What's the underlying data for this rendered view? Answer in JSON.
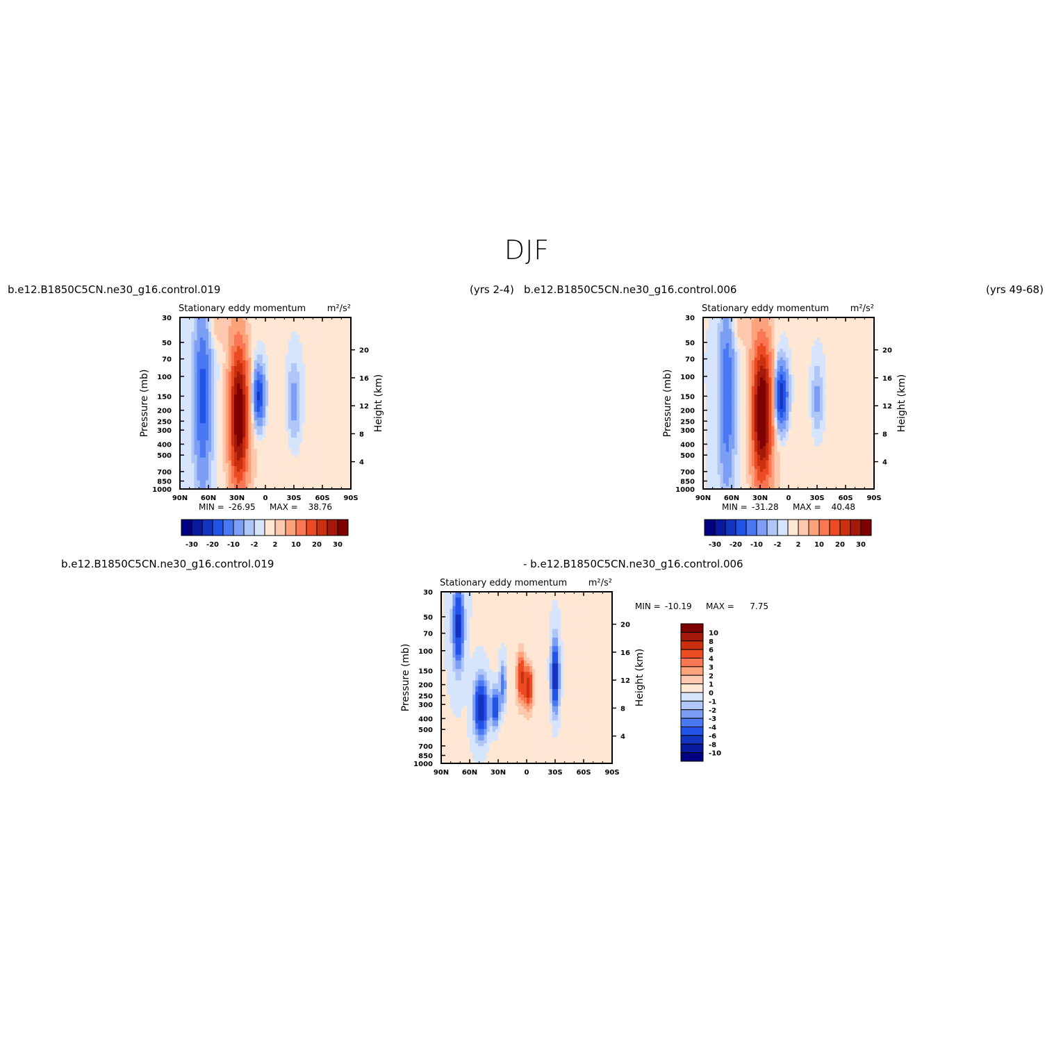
{
  "figure": {
    "title": "DJF"
  },
  "headers": {
    "top_left_case": "b.e12.B1850C5CN.ne30_g16.control.019",
    "top_left_years": "(yrs 2-4)",
    "top_right_case": "b.e12.B1850C5CN.ne30_g16.control.006",
    "top_right_years": "(yrs 49-68)",
    "bottom_left_case": "b.e12.B1850C5CN.ne30_g16.control.019",
    "bottom_diff_case": "- b.e12.B1850C5CN.ne30_g16.control.006"
  },
  "colors": {
    "fill": [
      "#000080",
      "#0a1a9c",
      "#1433c0",
      "#2353e6",
      "#4a78f2",
      "#7d9ef5",
      "#afc6f7",
      "#d6e5fc",
      "#ffe7d4",
      "#fdc9ae",
      "#fca37c",
      "#f97752",
      "#ec4a22",
      "#c9300f",
      "#a41909",
      "#7f0000"
    ]
  },
  "chart_data": [
    {
      "id": "control-019",
      "type": "heatmap",
      "title": "Stationary eddy momentum",
      "units": "m²/s²",
      "ylabel": "Pressure (mb)",
      "ylabel_right": "Height (km)",
      "x_ticks": [
        "90N",
        "60N",
        "30N",
        "0",
        "30S",
        "60S",
        "90S"
      ],
      "xlim": [
        90,
        -90
      ],
      "y_ticks": [
        30,
        50,
        70,
        100,
        150,
        200,
        250,
        300,
        400,
        500,
        700,
        850,
        1000
      ],
      "ylim": [
        1000,
        30
      ],
      "y_scale": "log",
      "height_ticks": [
        4,
        8,
        12,
        16,
        20
      ],
      "min_label": "MIN =",
      "min_value": "-26.95",
      "max_label": "MAX =",
      "max_value": "38.76",
      "colorbar": {
        "orientation": "horizontal",
        "labels": [
          "-30",
          "-20",
          "-10",
          "-2",
          "2",
          "10",
          "20",
          "30"
        ],
        "levels": [
          -30,
          -25,
          -20,
          -15,
          -10,
          -5,
          -2,
          0,
          2,
          5,
          10,
          15,
          20,
          25,
          30
        ]
      },
      "features": [
        {
          "lat": 66,
          "p": 150,
          "value": -17,
          "lat_width": 6,
          "decades": 0.55
        },
        {
          "lat": 28,
          "p": 220,
          "value": 36,
          "lat_width": 7,
          "decades": 0.45
        },
        {
          "lat": 7,
          "p": 150,
          "value": -22,
          "lat_width": 4.5,
          "decades": 0.18
        },
        {
          "lat": -30,
          "p": 170,
          "value": -8,
          "lat_width": 4.5,
          "decades": 0.22
        },
        {
          "lat": 50,
          "p": 35,
          "value": 4,
          "lat_width": 10,
          "decades": 0.12
        },
        {
          "lat": 0,
          "p": 500,
          "value": 1.5,
          "lat_width": 25,
          "decades": 0.6
        }
      ]
    },
    {
      "id": "control-006",
      "type": "heatmap",
      "title": "Stationary eddy momentum",
      "units": "m²/s²",
      "ylabel": "Pressure (mb)",
      "ylabel_right": "Height (km)",
      "x_ticks": [
        "90N",
        "60N",
        "30N",
        "0",
        "30S",
        "60S",
        "90S"
      ],
      "xlim": [
        90,
        -90
      ],
      "y_ticks": [
        30,
        50,
        70,
        100,
        150,
        200,
        250,
        300,
        400,
        500,
        700,
        850,
        1000
      ],
      "ylim": [
        1000,
        30
      ],
      "y_scale": "log",
      "height_ticks": [
        4,
        8,
        12,
        16,
        20
      ],
      "min_label": "MIN =",
      "min_value": "-31.28",
      "max_label": "MAX =",
      "max_value": "40.48",
      "colorbar": {
        "orientation": "horizontal",
        "labels": [
          "-30",
          "-20",
          "-10",
          "-2",
          "2",
          "10",
          "20",
          "30"
        ],
        "levels": [
          -30,
          -25,
          -20,
          -15,
          -10,
          -5,
          -2,
          0,
          2,
          5,
          10,
          15,
          20,
          25,
          30
        ]
      },
      "features": [
        {
          "lat": 65,
          "p": 150,
          "value": -15,
          "lat_width": 5.5,
          "decades": 0.55
        },
        {
          "lat": 28,
          "p": 210,
          "value": 38,
          "lat_width": 7.5,
          "decades": 0.45
        },
        {
          "lat": 8,
          "p": 150,
          "value": -26,
          "lat_width": 5,
          "decades": 0.2
        },
        {
          "lat": -30,
          "p": 160,
          "value": -7,
          "lat_width": 4,
          "decades": 0.2
        },
        {
          "lat": 50,
          "p": 35,
          "value": 4,
          "lat_width": 10,
          "decades": 0.12
        },
        {
          "lat": 0,
          "p": 500,
          "value": 1.5,
          "lat_width": 25,
          "decades": 0.6
        }
      ]
    },
    {
      "id": "difference",
      "type": "heatmap",
      "title": "Stationary eddy momentum",
      "units": "m²/s²",
      "ylabel": "Pressure (mb)",
      "ylabel_right": "Height (km)",
      "x_ticks": [
        "90N",
        "60N",
        "30N",
        "0",
        "30S",
        "60S",
        "90S"
      ],
      "xlim": [
        90,
        -90
      ],
      "y_ticks": [
        30,
        50,
        70,
        100,
        150,
        200,
        250,
        300,
        400,
        500,
        700,
        850,
        1000
      ],
      "ylim": [
        1000,
        30
      ],
      "y_scale": "log",
      "height_ticks": [
        4,
        8,
        12,
        16,
        20
      ],
      "min_label": "MIN =",
      "min_value": "-10.19",
      "max_label": "MAX =",
      "max_value": "7.75",
      "colorbar": {
        "orientation": "vertical",
        "labels": [
          "10",
          "8",
          "6",
          "4",
          "3",
          "2",
          "1",
          "0",
          "-1",
          "-2",
          "-3",
          "-4",
          "-6",
          "-8",
          "-10"
        ],
        "levels": [
          -10,
          -8,
          -6,
          -4,
          -3,
          -2,
          -1,
          0,
          1,
          2,
          3,
          4,
          6,
          8,
          10
        ]
      },
      "features": [
        {
          "lat": 72,
          "p": 60,
          "value": -7,
          "lat_width": 4,
          "decades": 0.25
        },
        {
          "lat": 48,
          "p": 320,
          "value": -8,
          "lat_width": 5,
          "decades": 0.18
        },
        {
          "lat": 33,
          "p": 320,
          "value": -6,
          "lat_width": 3,
          "decades": 0.12
        },
        {
          "lat": 25,
          "p": 200,
          "value": -4,
          "lat_width": 2.5,
          "decades": 0.15
        },
        {
          "lat": 6,
          "p": 170,
          "value": 6,
          "lat_width": 3,
          "decades": 0.15
        },
        {
          "lat": -2,
          "p": 210,
          "value": 7,
          "lat_width": 3,
          "decades": 0.12
        },
        {
          "lat": -30,
          "p": 170,
          "value": -8,
          "lat_width": 3,
          "decades": 0.22
        },
        {
          "lat": 0,
          "p": 500,
          "value": 0.6,
          "lat_width": 30,
          "decades": 0.6
        }
      ]
    }
  ]
}
